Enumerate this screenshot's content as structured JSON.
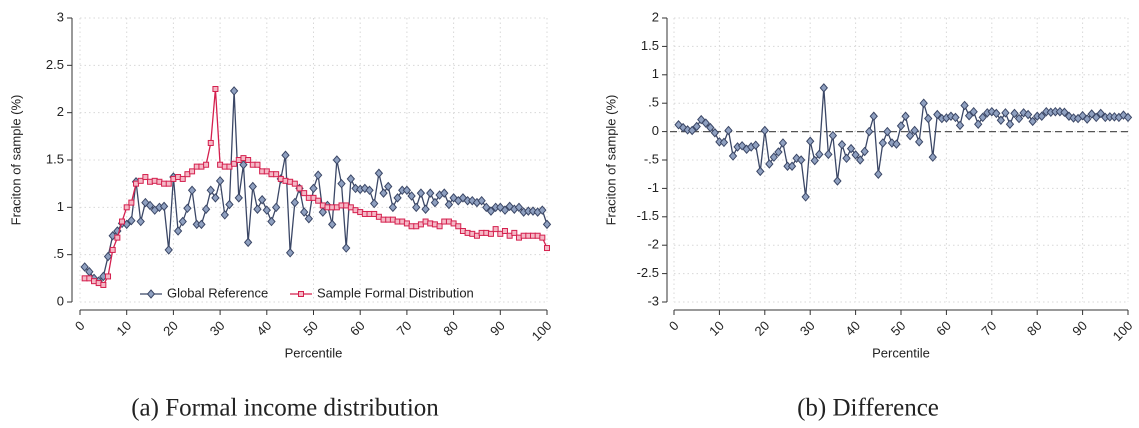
{
  "chart_data": [
    {
      "type": "line",
      "caption": "(a) Formal income distribution",
      "x_label": "Percentile",
      "y_label": "Fraciton of sample (%)",
      "x": [
        1,
        2,
        3,
        4,
        5,
        6,
        7,
        8,
        9,
        10,
        11,
        12,
        13,
        14,
        15,
        16,
        17,
        18,
        19,
        20,
        21,
        22,
        23,
        24,
        25,
        26,
        27,
        28,
        29,
        30,
        31,
        32,
        33,
        34,
        35,
        36,
        37,
        38,
        39,
        40,
        41,
        42,
        43,
        44,
        45,
        46,
        47,
        48,
        49,
        50,
        51,
        52,
        53,
        54,
        55,
        56,
        57,
        58,
        59,
        60,
        61,
        62,
        63,
        64,
        65,
        66,
        67,
        68,
        69,
        70,
        71,
        72,
        73,
        74,
        75,
        76,
        77,
        78,
        79,
        80,
        81,
        82,
        83,
        84,
        85,
        86,
        87,
        88,
        89,
        90,
        91,
        92,
        93,
        94,
        95,
        96,
        97,
        98,
        99,
        100
      ],
      "xlim": [
        0,
        100
      ],
      "xticks": [
        0,
        10,
        20,
        30,
        40,
        50,
        60,
        70,
        80,
        90,
        100
      ],
      "ylim": [
        0,
        3
      ],
      "yticks": [
        0,
        {
          "value": 0.5,
          "label": ".5"
        },
        1,
        1.5,
        2,
        2.5,
        3
      ],
      "grid": true,
      "legend": "bottom",
      "series": [
        {
          "name": "Global Reference",
          "color": "#3b4766",
          "marker": "diamond",
          "values": [
            0.37,
            0.32,
            0.25,
            0.22,
            0.27,
            0.48,
            0.7,
            0.75,
            0.83,
            0.82,
            0.86,
            1.27,
            0.85,
            1.05,
            1.02,
            0.97,
            1.0,
            1.01,
            0.55,
            1.32,
            0.75,
            0.85,
            0.99,
            1.18,
            0.82,
            0.82,
            0.98,
            1.18,
            1.1,
            1.28,
            0.92,
            1.03,
            2.23,
            1.1,
            1.45,
            0.63,
            1.22,
            0.98,
            1.08,
            0.97,
            0.85,
            1.0,
            1.3,
            1.55,
            0.52,
            1.05,
            1.2,
            0.95,
            0.88,
            1.2,
            1.34,
            0.95,
            1.02,
            0.82,
            1.5,
            1.25,
            0.57,
            1.3,
            1.2,
            1.19,
            1.2,
            1.18,
            1.04,
            1.36,
            1.15,
            1.22,
            1.0,
            1.1,
            1.18,
            1.18,
            1.12,
            1.0,
            1.15,
            0.98,
            1.15,
            1.05,
            1.13,
            1.15,
            1.03,
            1.1,
            1.07,
            1.1,
            1.07,
            1.07,
            1.05,
            1.07,
            1.0,
            0.96,
            1.0,
            1.0,
            0.97,
            1.01,
            0.98,
            1.0,
            0.95,
            0.96,
            0.96,
            0.95,
            0.97,
            0.82
          ]
        },
        {
          "name": "Sample Formal Distribution",
          "color": "#d4204e",
          "marker": "square",
          "values": [
            0.25,
            0.25,
            0.22,
            0.2,
            0.18,
            0.27,
            0.55,
            0.68,
            0.85,
            1.0,
            1.05,
            1.25,
            1.28,
            1.32,
            1.27,
            1.28,
            1.27,
            1.25,
            1.25,
            1.3,
            1.32,
            1.3,
            1.35,
            1.38,
            1.43,
            1.43,
            1.45,
            1.68,
            2.25,
            1.45,
            1.43,
            1.43,
            1.46,
            1.5,
            1.52,
            1.5,
            1.45,
            1.45,
            1.38,
            1.38,
            1.35,
            1.35,
            1.3,
            1.28,
            1.27,
            1.25,
            1.2,
            1.15,
            1.1,
            1.1,
            1.07,
            1.02,
            1.0,
            1.0,
            1.0,
            1.02,
            1.02,
            1.0,
            0.97,
            0.95,
            0.93,
            0.93,
            0.93,
            0.9,
            0.87,
            0.87,
            0.87,
            0.85,
            0.85,
            0.83,
            0.8,
            0.8,
            0.82,
            0.85,
            0.83,
            0.82,
            0.8,
            0.85,
            0.85,
            0.83,
            0.8,
            0.75,
            0.73,
            0.72,
            0.7,
            0.73,
            0.73,
            0.72,
            0.77,
            0.72,
            0.75,
            0.7,
            0.73,
            0.68,
            0.7,
            0.7,
            0.7,
            0.7,
            0.68,
            0.57
          ]
        }
      ]
    },
    {
      "type": "line",
      "caption": "(b) Difference",
      "x_label": "Percentile",
      "y_label": "Fraciton of sample (%)",
      "x": [
        1,
        2,
        3,
        4,
        5,
        6,
        7,
        8,
        9,
        10,
        11,
        12,
        13,
        14,
        15,
        16,
        17,
        18,
        19,
        20,
        21,
        22,
        23,
        24,
        25,
        26,
        27,
        28,
        29,
        30,
        31,
        32,
        33,
        34,
        35,
        36,
        37,
        38,
        39,
        40,
        41,
        42,
        43,
        44,
        45,
        46,
        47,
        48,
        49,
        50,
        51,
        52,
        53,
        54,
        55,
        56,
        57,
        58,
        59,
        60,
        61,
        62,
        63,
        64,
        65,
        66,
        67,
        68,
        69,
        70,
        71,
        72,
        73,
        74,
        75,
        76,
        77,
        78,
        79,
        80,
        81,
        82,
        83,
        84,
        85,
        86,
        87,
        88,
        89,
        90,
        91,
        92,
        93,
        94,
        95,
        96,
        97,
        98,
        99,
        100
      ],
      "xlim": [
        0,
        100
      ],
      "xticks": [
        0,
        10,
        20,
        30,
        40,
        50,
        60,
        70,
        80,
        90,
        100
      ],
      "ylim": [
        -3,
        2
      ],
      "yticks": [
        -3,
        -2.5,
        -2,
        -1.5,
        -1,
        {
          "value": -0.5,
          "label": "-.5"
        },
        0,
        {
          "value": 0.5,
          "label": ".5"
        },
        1,
        1.5,
        2
      ],
      "grid": true,
      "hline": 0,
      "series": [
        {
          "color": "#3b4766",
          "marker": "diamond",
          "values": [
            0.12,
            0.07,
            0.03,
            0.02,
            0.09,
            0.21,
            0.15,
            0.07,
            -0.02,
            -0.18,
            -0.19,
            0.02,
            -0.43,
            -0.27,
            -0.25,
            -0.31,
            -0.27,
            -0.24,
            -0.7,
            0.02,
            -0.57,
            -0.45,
            -0.36,
            -0.2,
            -0.61,
            -0.61,
            -0.47,
            -0.5,
            -1.15,
            -0.17,
            -0.51,
            -0.4,
            0.77,
            -0.4,
            -0.07,
            -0.87,
            -0.23,
            -0.47,
            -0.3,
            -0.41,
            -0.5,
            -0.35,
            0,
            0.27,
            -0.75,
            -0.2,
            0,
            -0.2,
            -0.22,
            0.1,
            0.27,
            -0.07,
            0.02,
            -0.18,
            0.5,
            0.23,
            -0.45,
            0.3,
            0.23,
            0.24,
            0.27,
            0.25,
            0.11,
            0.46,
            0.28,
            0.35,
            0.13,
            0.25,
            0.33,
            0.35,
            0.32,
            0.2,
            0.33,
            0.13,
            0.32,
            0.23,
            0.33,
            0.3,
            0.18,
            0.27,
            0.27,
            0.35,
            0.34,
            0.35,
            0.35,
            0.34,
            0.27,
            0.24,
            0.23,
            0.28,
            0.22,
            0.31,
            0.25,
            0.32,
            0.25,
            0.26,
            0.26,
            0.25,
            0.29,
            0.25
          ]
        }
      ]
    }
  ]
}
